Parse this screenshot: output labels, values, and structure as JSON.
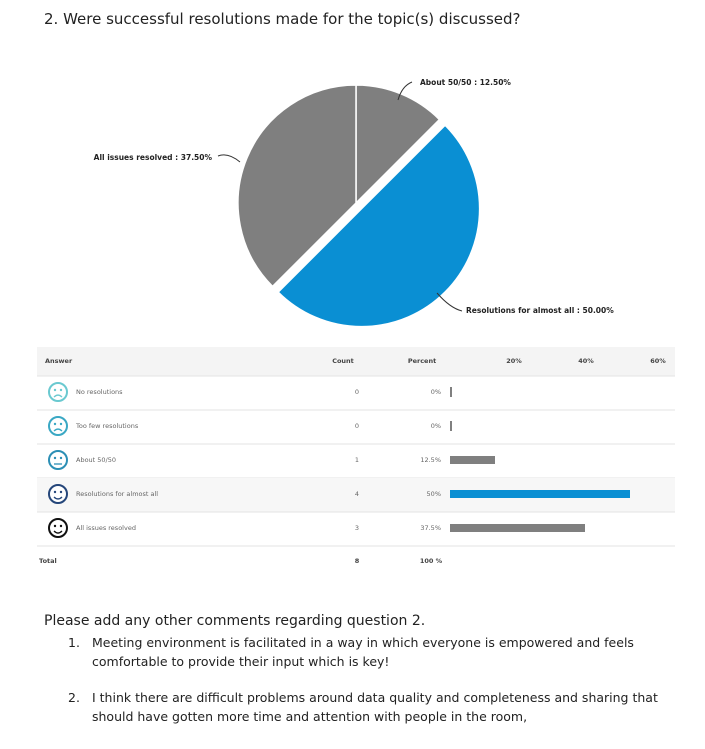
{
  "question": "2. Were successful resolutions made for the topic(s) discussed?",
  "chart_data": {
    "type": "pie",
    "labels": [
      "About 50/50 : 12.50%",
      "Resolutions for almost all : 50.00%",
      "All issues resolved : 37.50%"
    ],
    "values": [
      12.5,
      50,
      37.5
    ],
    "colors": [
      "#7f7f7f",
      "#0a8fd3",
      "#7f7f7f"
    ],
    "exploded": [
      false,
      true,
      false
    ]
  },
  "table": {
    "headers": [
      "Answer",
      "Count",
      "Percent"
    ],
    "xlim": [
      0,
      60
    ],
    "xticks": [
      {
        "value": 20,
        "label": "20%"
      },
      {
        "value": 40,
        "label": "40%"
      },
      {
        "value": 60,
        "label": "60%"
      }
    ],
    "rows": [
      {
        "answer": "No resolutions",
        "count": "0",
        "percent": "0%",
        "value": 0,
        "color": "#555555"
      },
      {
        "answer": "Too few resolutions",
        "count": "0",
        "percent": "0%",
        "value": 0,
        "color": "#555555"
      },
      {
        "answer": "About 50/50",
        "count": "1",
        "percent": "12.5%",
        "value": 12.5,
        "color": "#7f7f7f"
      },
      {
        "answer": "Resolutions for almost all",
        "count": "4",
        "percent": "50%",
        "value": 50,
        "color": "#0a8fd3"
      },
      {
        "answer": "All issues resolved",
        "count": "3",
        "percent": "37.5%",
        "value": 37.5,
        "color": "#7f7f7f"
      }
    ],
    "total": {
      "label": "Total",
      "count": "8",
      "percent": "100 %"
    }
  },
  "comments": {
    "heading": "Please add any other comments regarding question 2.",
    "items": [
      {
        "number": "1.",
        "text": "Meeting environment is facilitated in a way in which everyone is empowered and feels comfortable to provide their input which is key!"
      },
      {
        "number": "2.",
        "text": "I think there are difficult problems around data quality and completeness and sharing that should have gotten more time and attention with people in the room,"
      }
    ]
  }
}
